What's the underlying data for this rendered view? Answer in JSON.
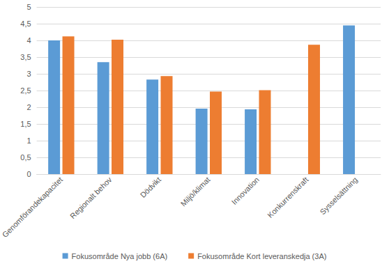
{
  "chart_data": {
    "type": "bar",
    "categories": [
      "Genomförandekapacitet",
      "Regionalt behov",
      "Dödvikt",
      "Miljö/klimat",
      "Innovation",
      "Konkurrenskraft",
      "Sysselsättning"
    ],
    "series": [
      {
        "name": "Fokusområde Nya jobb (6A)",
        "color": "#5b9bd5",
        "values": [
          4.0,
          3.35,
          2.83,
          1.96,
          1.94,
          null,
          4.45
        ]
      },
      {
        "name": "Fokusområde Kort leveranskedja (3A)",
        "color": "#ed7d31",
        "values": [
          4.12,
          4.02,
          2.93,
          2.47,
          2.51,
          3.87,
          null
        ]
      }
    ],
    "ylim": [
      0,
      5
    ],
    "yticks": [
      0,
      {
        "value": 0.5,
        "label": "0,5"
      },
      1,
      {
        "value": 1.5,
        "label": "1,5"
      },
      2,
      {
        "value": 2.5,
        "label": "2,5"
      },
      3,
      {
        "value": 3.5,
        "label": "3,5"
      },
      4,
      {
        "value": 4.5,
        "label": "4,5"
      },
      5
    ],
    "grid": true,
    "legend": "bottom"
  }
}
